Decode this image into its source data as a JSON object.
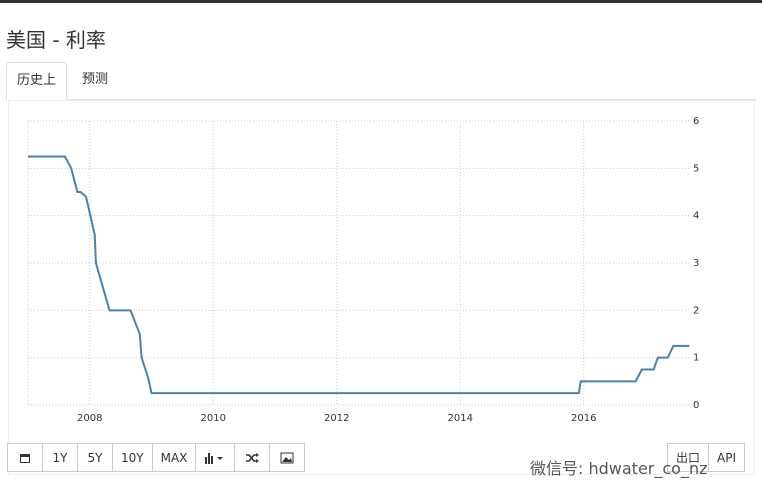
{
  "page_title": "美国 - 利率",
  "tabs": [
    "历史上",
    "预测"
  ],
  "range_buttons": [
    "1Y",
    "5Y",
    "10Y",
    "MAX"
  ],
  "export_buttons": [
    "出口",
    "API"
  ],
  "watermark": "微信号: hdwater_co_nz",
  "chart_data": {
    "type": "line",
    "x": [
      2007.0,
      2007.6,
      2007.7,
      2007.8,
      2007.85,
      2007.94,
      2008.08,
      2008.1,
      2008.21,
      2008.32,
      2008.66,
      2008.81,
      2008.84,
      2008.94,
      2009.0,
      2015.92,
      2015.95,
      2016.84,
      2016.94,
      2017.13,
      2017.2,
      2017.36,
      2017.45,
      2017.71
    ],
    "series": [
      {
        "color": "#4f81a8",
        "values": [
          5.25,
          5.25,
          5.0,
          4.5,
          4.5,
          4.4,
          3.6,
          3.0,
          2.5,
          2.0,
          2.0,
          1.5,
          1.0,
          0.6,
          0.25,
          0.25,
          0.5,
          0.5,
          0.75,
          0.75,
          1.0,
          1.0,
          1.25,
          1.25
        ]
      }
    ],
    "xlim": [
      2007.0,
      2017.72
    ],
    "xticks": [
      2008,
      2010,
      2012,
      2014,
      2016
    ],
    "ylim": [
      0,
      6
    ],
    "yticks": [
      0,
      1,
      2,
      3,
      4,
      5,
      6
    ],
    "grid": true
  }
}
